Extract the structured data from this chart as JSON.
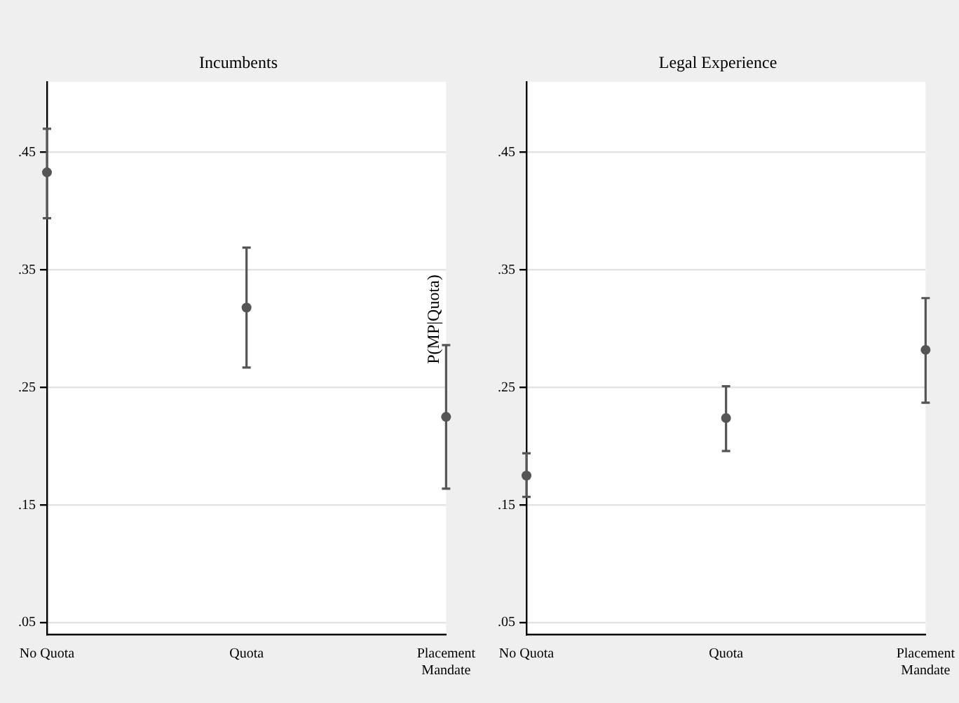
{
  "chart_data": [
    {
      "type": "scatter",
      "title": "Incumbents",
      "categories": [
        "No Quota",
        "Quota",
        "Placement Mandate"
      ],
      "series": [
        {
          "color": "#555555",
          "values": [
            0.433,
            0.318,
            0.225
          ],
          "errors": [
            [
              0.394,
              0.47
            ],
            [
              0.267,
              0.369
            ],
            [
              0.164,
              0.286
            ]
          ]
        }
      ],
      "ylim": [
        0.04,
        0.51
      ],
      "yticks": [
        {
          "value": 0.05,
          "label": ".05"
        },
        {
          "value": 0.15,
          "label": ".15"
        },
        {
          "value": 0.25,
          "label": ".25"
        },
        {
          "value": 0.35,
          "label": ".35"
        },
        {
          "value": 0.45,
          "label": ".45"
        }
      ],
      "grid": "y",
      "legend": false,
      "marker": "circle"
    },
    {
      "type": "scatter",
      "title": "Legal Experience",
      "ylabel": "P(MP|Quota)",
      "categories": [
        "No Quota",
        "Quota",
        "Placement Mandate"
      ],
      "series": [
        {
          "color": "#555555",
          "values": [
            0.175,
            0.224,
            0.282
          ],
          "errors": [
            [
              0.157,
              0.194
            ],
            [
              0.196,
              0.251
            ],
            [
              0.237,
              0.326
            ]
          ]
        }
      ],
      "ylim": [
        0.04,
        0.51
      ],
      "yticks": [
        {
          "value": 0.05,
          "label": ".05"
        },
        {
          "value": 0.15,
          "label": ".15"
        },
        {
          "value": 0.25,
          "label": ".25"
        },
        {
          "value": 0.35,
          "label": ".35"
        },
        {
          "value": 0.45,
          "label": ".45"
        }
      ],
      "grid": "y",
      "legend": false,
      "marker": "circle"
    }
  ]
}
